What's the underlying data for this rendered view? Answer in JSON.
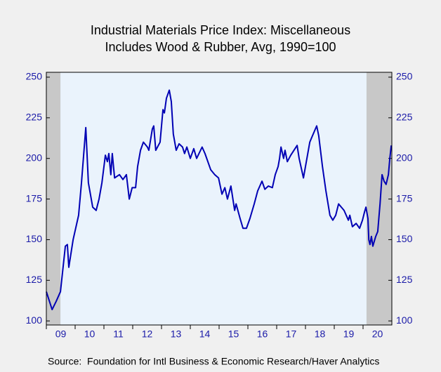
{
  "chart_data": {
    "type": "line",
    "title": "Industrial Materials Price Index: Miscellaneous",
    "subtitle": "Includes Wood & Rubber, Avg, 1990=100",
    "source": "Source:  Foundation for Intl Business & Economic Research/Haver Analytics",
    "color": "#0000b4",
    "shaded_periods": [
      [
        2009.0,
        2009.49
      ],
      [
        2020.12,
        2021.0
      ]
    ],
    "xlim": [
      2009.0,
      2021.0
    ],
    "xticks": [
      {
        "value": 2009.5,
        "label": "09"
      },
      {
        "value": 2010.5,
        "label": "10"
      },
      {
        "value": 2011.5,
        "label": "11"
      },
      {
        "value": 2012.5,
        "label": "12"
      },
      {
        "value": 2013.5,
        "label": "13"
      },
      {
        "value": 2014.5,
        "label": "14"
      },
      {
        "value": 2015.5,
        "label": "15"
      },
      {
        "value": 2016.5,
        "label": "16"
      },
      {
        "value": 2017.5,
        "label": "17"
      },
      {
        "value": 2018.5,
        "label": "18"
      },
      {
        "value": 2019.5,
        "label": "19"
      },
      {
        "value": 2020.5,
        "label": "20"
      }
    ],
    "ylim": [
      97.5,
      253
    ],
    "yticks": [
      100,
      125,
      150,
      175,
      200,
      225,
      250
    ],
    "x": [
      2009.0,
      2009.2,
      2009.34,
      2009.49,
      2009.66,
      2009.73,
      2009.78,
      2009.93,
      2010.12,
      2010.22,
      2010.37,
      2010.46,
      2010.61,
      2010.73,
      2010.83,
      2010.93,
      2011.05,
      2011.12,
      2011.17,
      2011.24,
      2011.29,
      2011.37,
      2011.54,
      2011.66,
      2011.78,
      2011.88,
      2011.98,
      2012.1,
      2012.17,
      2012.27,
      2012.37,
      2012.51,
      2012.56,
      2012.68,
      2012.73,
      2012.8,
      2012.95,
      2013.05,
      2013.1,
      2013.17,
      2013.27,
      2013.34,
      2013.41,
      2013.51,
      2013.61,
      2013.73,
      2013.8,
      2013.88,
      2014.0,
      2014.12,
      2014.22,
      2014.41,
      2014.51,
      2014.71,
      2014.85,
      2014.98,
      2015.1,
      2015.2,
      2015.29,
      2015.41,
      2015.54,
      2015.59,
      2015.73,
      2015.83,
      2015.95,
      2016.07,
      2016.22,
      2016.34,
      2016.49,
      2016.59,
      2016.71,
      2016.85,
      2016.95,
      2017.05,
      2017.1,
      2017.15,
      2017.24,
      2017.29,
      2017.37,
      2017.49,
      2017.71,
      2017.78,
      2017.93,
      2018.05,
      2018.15,
      2018.22,
      2018.39,
      2018.46,
      2018.59,
      2018.71,
      2018.85,
      2018.95,
      2019.05,
      2019.15,
      2019.34,
      2019.49,
      2019.54,
      2019.63,
      2019.76,
      2019.88,
      2019.98,
      2020.05,
      2020.1,
      2020.17,
      2020.2,
      2020.24,
      2020.29,
      2020.34,
      2020.44,
      2020.51,
      2020.59,
      2020.66,
      2020.73,
      2020.8,
      2020.88,
      2020.93,
      2020.98
    ],
    "values": [
      118,
      107,
      112,
      118,
      146,
      147,
      133,
      150,
      165,
      185,
      219,
      185,
      170,
      168,
      175,
      185,
      202,
      198,
      203,
      190,
      203,
      188,
      190,
      187,
      190,
      175,
      182,
      182,
      195,
      205,
      210,
      207,
      205,
      218,
      220,
      205,
      210,
      230,
      228,
      237,
      242,
      235,
      215,
      205,
      209,
      207,
      203,
      207,
      200,
      206,
      200,
      207,
      203,
      193,
      190,
      188,
      178,
      182,
      175,
      183,
      168,
      172,
      163,
      157,
      157,
      163,
      172,
      180,
      186,
      181,
      183,
      182,
      190,
      195,
      200,
      207,
      200,
      205,
      198,
      202,
      208,
      200,
      188,
      200,
      210,
      213,
      220,
      214,
      195,
      180,
      165,
      162,
      165,
      172,
      168,
      162,
      165,
      158,
      160,
      157,
      162,
      167,
      170,
      163,
      150,
      147,
      152,
      146,
      152,
      155,
      172,
      190,
      186,
      184,
      190,
      200,
      208
    ]
  }
}
